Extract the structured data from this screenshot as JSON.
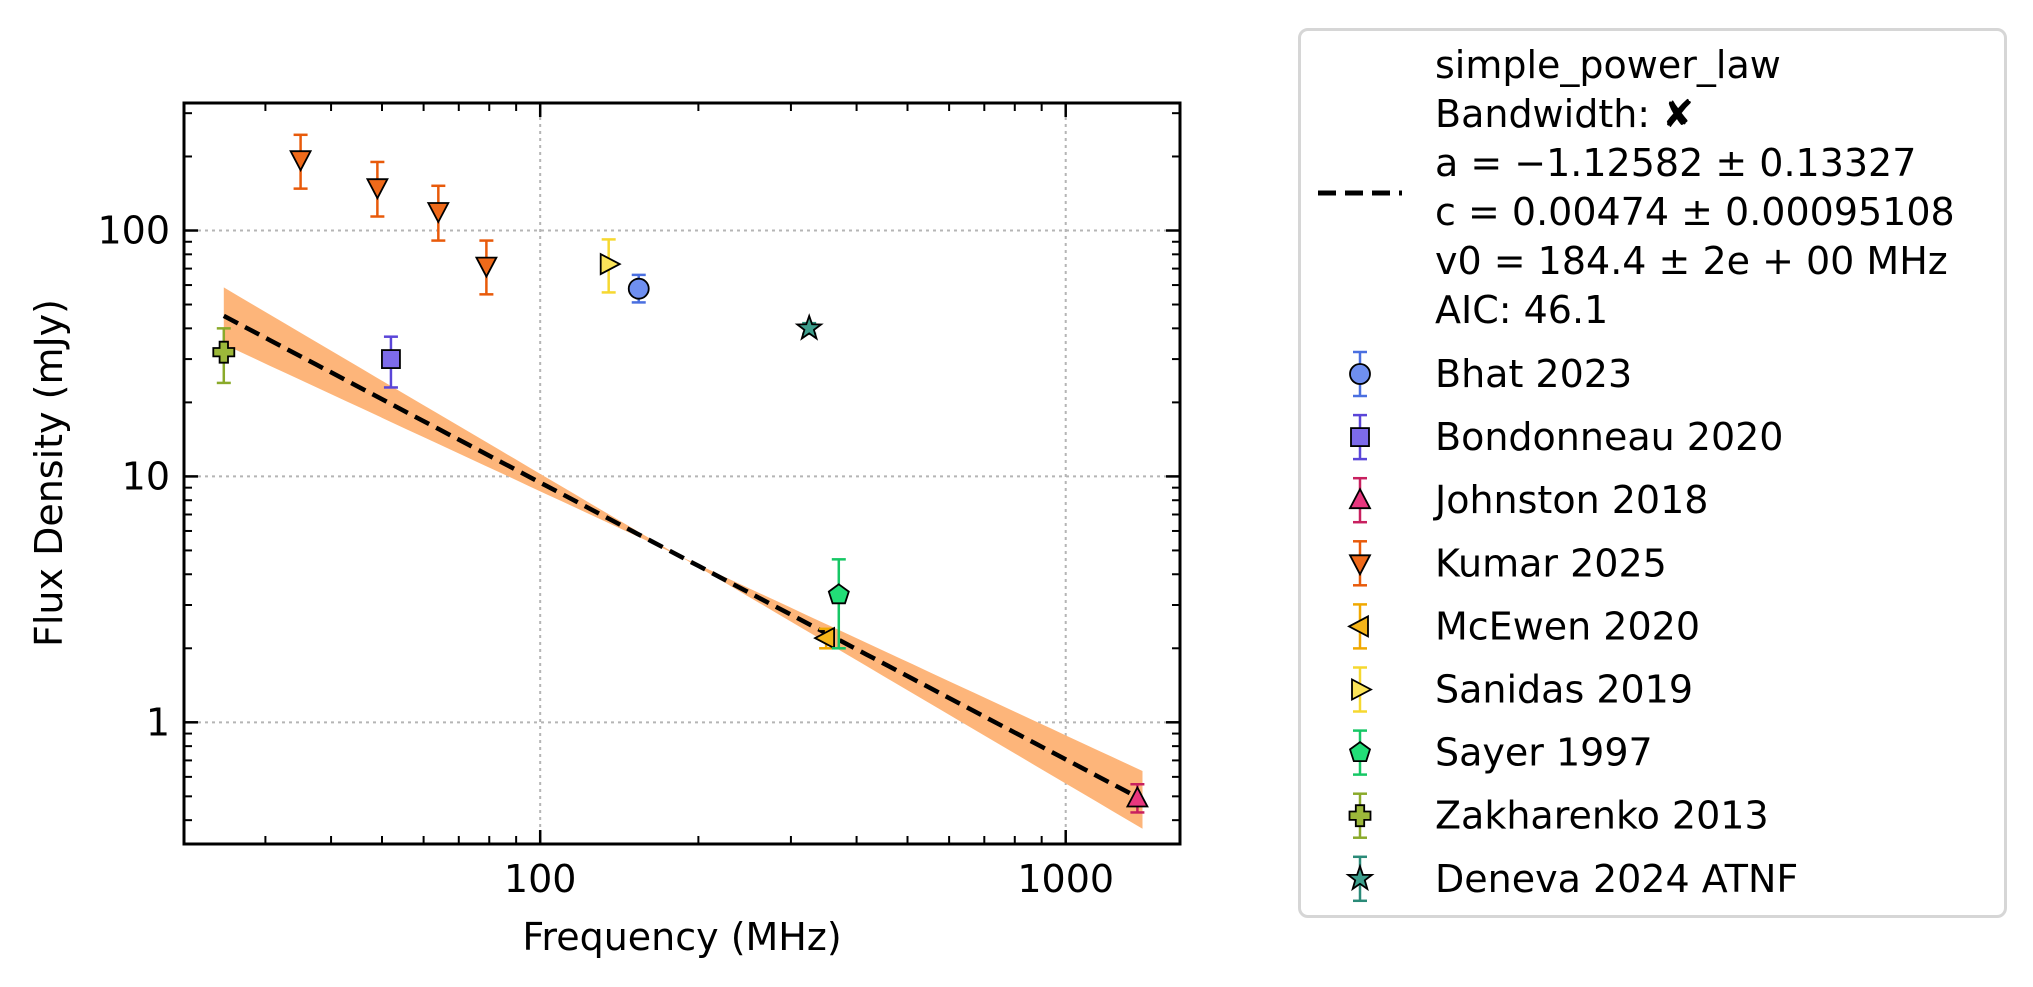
{
  "chart_data": {
    "type": "scatter",
    "xlabel": "Frequency (MHz)",
    "ylabel": "Flux Density (mJy)",
    "xscale": "log",
    "yscale": "log",
    "xlim": [
      21,
      1650
    ],
    "ylim": [
      0.32,
      330
    ],
    "xticks": [
      100,
      1000
    ],
    "xtick_labels": [
      "100",
      "1000"
    ],
    "yticks": [
      1,
      10,
      100
    ],
    "ytick_labels": [
      "1",
      "10",
      "100"
    ],
    "grid": true,
    "legend_position": "outside-right",
    "fit": {
      "name": "simple_power_law",
      "legend_lines": [
        "simple_power_law",
        "Bandwidth: ✘",
        "a = −1.12582 ± 0.13327",
        "c = 0.00474 ± 0.00095108",
        "v0 = 184.4 ± 2e + 00 MHz",
        "AIC: 46.1"
      ],
      "line_color": "#000000",
      "band_color": "#fdb57a",
      "x_range": [
        25,
        1400
      ],
      "a": -1.12582,
      "a_err": 0.13327,
      "c_mJy": 4.74,
      "v0": 184.4
    },
    "series": [
      {
        "name": "Bhat 2023",
        "marker": "circle",
        "color": "#6f8ff0",
        "edge": "#4a6fe0",
        "points": [
          {
            "x": 154,
            "y": 58,
            "ylo": 51,
            "yhi": 66
          }
        ]
      },
      {
        "name": "Bondonneau 2020",
        "marker": "square",
        "color": "#7d6bea",
        "edge": "#5a45d8",
        "points": [
          {
            "x": 52,
            "y": 30,
            "ylo": 23,
            "yhi": 37
          }
        ]
      },
      {
        "name": "Johnston 2018",
        "marker": "triangle-up",
        "color": "#e8377e",
        "edge": "#c8205f",
        "points": [
          {
            "x": 1369,
            "y": 0.49,
            "ylo": 0.43,
            "yhi": 0.56
          }
        ]
      },
      {
        "name": "Kumar 2025",
        "marker": "triangle-down",
        "color": "#f06a1a",
        "edge": "#e85a0a",
        "points": [
          {
            "x": 35,
            "y": 195,
            "ylo": 148,
            "yhi": 245
          },
          {
            "x": 49,
            "y": 150,
            "ylo": 114,
            "yhi": 190
          },
          {
            "x": 64,
            "y": 120,
            "ylo": 91,
            "yhi": 152
          },
          {
            "x": 79,
            "y": 72,
            "ylo": 55,
            "yhi": 91
          }
        ]
      },
      {
        "name": "McEwen 2020",
        "marker": "triangle-left",
        "color": "#f5b51a",
        "edge": "#f0a800",
        "points": [
          {
            "x": 350,
            "y": 2.2,
            "ylo": 2.0,
            "yhi": 2.4
          }
        ]
      },
      {
        "name": "Sanidas 2019",
        "marker": "triangle-right",
        "color": "#fbe45a",
        "edge": "#f6d830",
        "points": [
          {
            "x": 135,
            "y": 73,
            "ylo": 56,
            "yhi": 92
          }
        ]
      },
      {
        "name": "Sayer 1997",
        "marker": "pentagon",
        "color": "#22dd77",
        "edge": "#16c765",
        "points": [
          {
            "x": 370,
            "y": 3.3,
            "ylo": 2.0,
            "yhi": 4.6
          }
        ]
      },
      {
        "name": "Zakharenko 2013",
        "marker": "plus",
        "color": "#9cb83a",
        "edge": "#8aaa2a",
        "points": [
          {
            "x": 25,
            "y": 32,
            "ylo": 24,
            "yhi": 40
          }
        ]
      },
      {
        "name": "Deneva 2024 ATNF",
        "marker": "star",
        "color": "#3d9e8c",
        "edge": "#2a8a78",
        "points": [
          {
            "x": 325,
            "y": 40,
            "ylo": 38,
            "yhi": 42
          }
        ]
      }
    ]
  }
}
